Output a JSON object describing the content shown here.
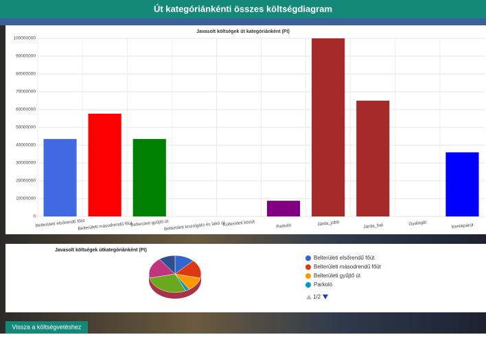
{
  "header": {
    "title": "Út kategóriánkénti összes költségdiagram"
  },
  "chart_data": [
    {
      "type": "bar",
      "title": "Javasolt költségek út kategóriánként (Ft)",
      "categories": [
        "Belterületi elsőrendű főút",
        "Belterületi másodrendű főút",
        "Belterületi gyűjtő út",
        "Belterületi kiszolgáló és lakó út",
        "Külterületi közút",
        "Parkoló",
        "Járda_jobb",
        "Járda_bal",
        "Gyalogút",
        "Kerékpárút"
      ],
      "values": [
        43500000,
        57700000,
        43500000,
        0,
        0,
        8800000,
        100000000,
        65000000,
        0,
        36000000
      ],
      "colors": [
        "#4169e1",
        "#ff0000",
        "#008000",
        "#808080",
        "#808080",
        "#800080",
        "#a52a2a",
        "#a52a2a",
        "#808080",
        "#0000ff"
      ],
      "ylim": [
        0,
        100000000
      ],
      "yticks": [
        0,
        10000000,
        20000000,
        30000000,
        40000000,
        50000000,
        60000000,
        70000000,
        80000000,
        90000000,
        100000000
      ],
      "grid": true
    },
    {
      "type": "pie",
      "title": "Javasolt költségek útkategóriánként (Ft)",
      "categories": [
        "Belterületi elsőrendű főút",
        "Belterületi másodrendű főút",
        "Belterületi gyűjtő út",
        "Parkoló",
        null,
        null,
        null
      ],
      "values": [
        43500000,
        57700000,
        43500000,
        8800000,
        100000000,
        65000000,
        36000000
      ],
      "colors": [
        "#3366cc",
        "#dc3912",
        "#ff9900",
        "#0099c6",
        "#6aa81e",
        "#c0357e",
        "#2f4f8f"
      ],
      "legend_page": "1/2"
    }
  ],
  "button": "Vissza a költségvetéshez"
}
